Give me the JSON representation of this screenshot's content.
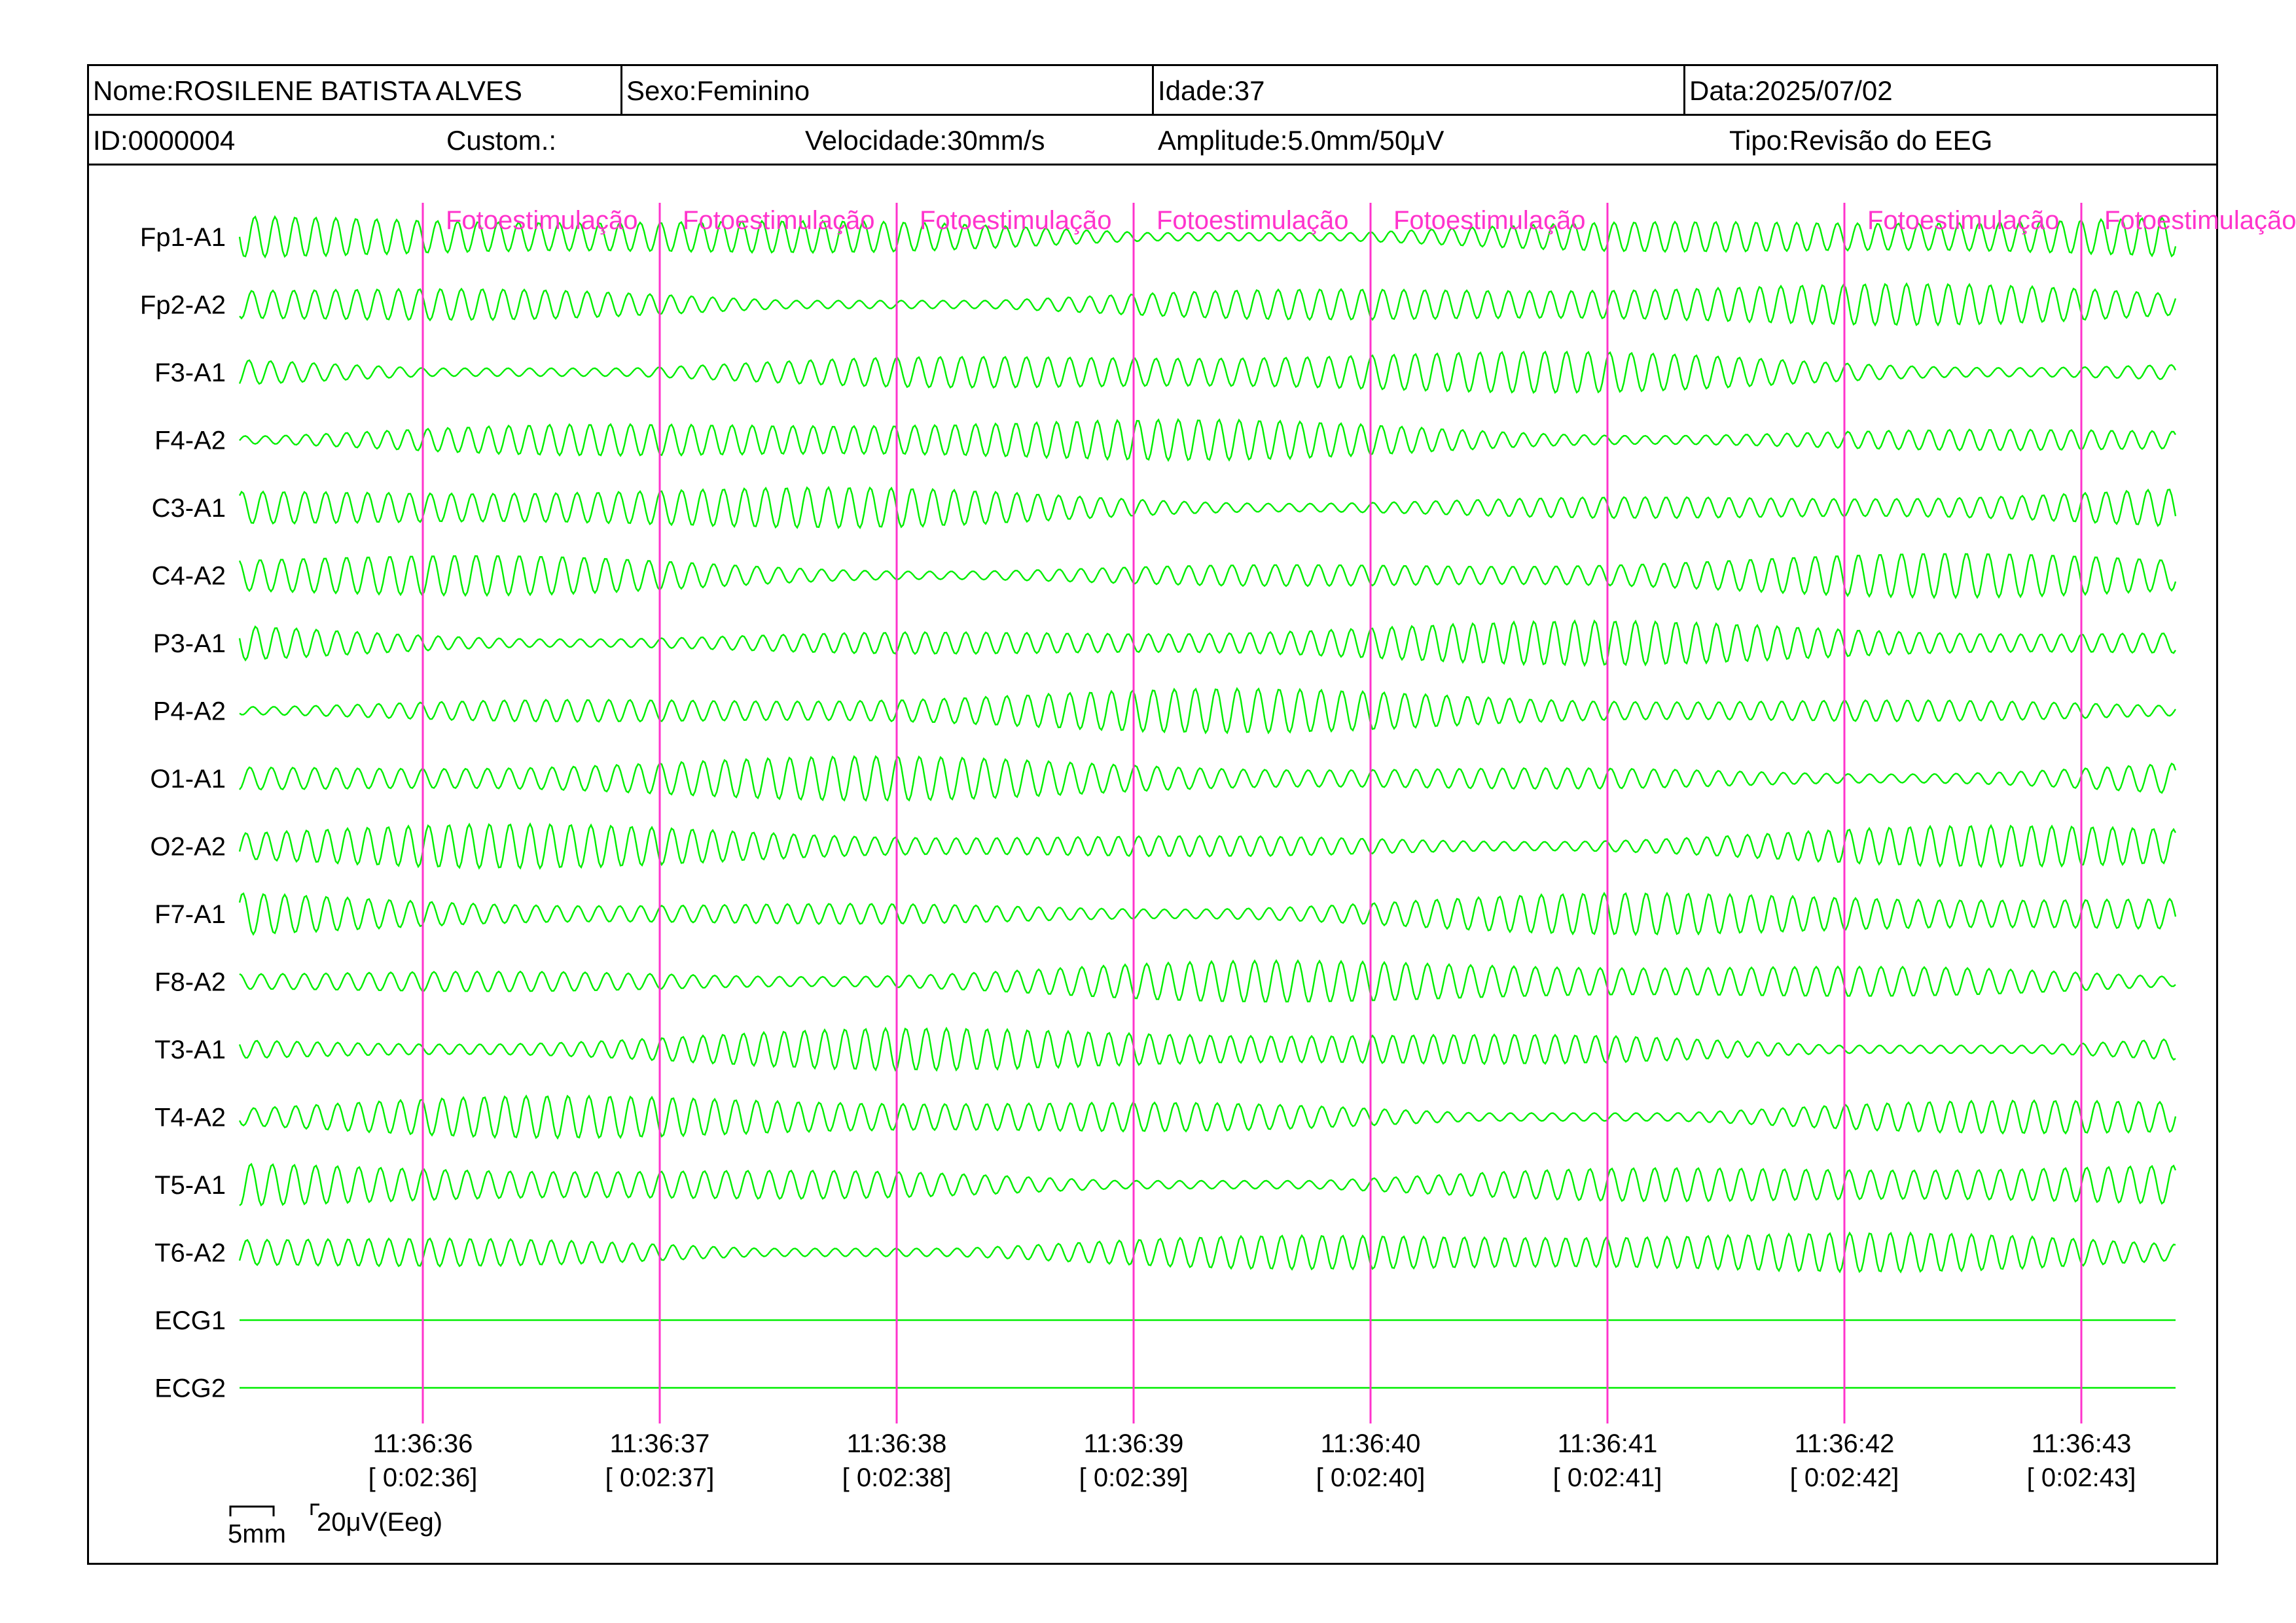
{
  "header": {
    "nome": "Nome:ROSILENE BATISTA ALVES",
    "sexo": "Sexo:Feminino",
    "idade": "Idade:37",
    "data": "Data:2025/07/02",
    "id": "ID:0000004",
    "custom": "Custom.:",
    "velocidade": "Velocidade:30mm/s",
    "amplitude": "Amplitude:5.0mm/50μV",
    "tipo": "Tipo:Revisão do EEG"
  },
  "colors": {
    "trace": "#00ee00",
    "marker": "#ff33cc",
    "border": "#000000"
  },
  "chart_data": {
    "type": "line",
    "channels": [
      "Fp1-A1",
      "Fp2-A2",
      "F3-A1",
      "F4-A2",
      "C3-A1",
      "C4-A2",
      "P3-A1",
      "P4-A2",
      "O1-A1",
      "O2-A2",
      "F7-A1",
      "F8-A2",
      "T3-A1",
      "T4-A2",
      "T5-A1",
      "T6-A2",
      "ECG1",
      "ECG2"
    ],
    "flat_channels": [
      "ECG1",
      "ECG2"
    ],
    "time_ticks": [
      {
        "clock": "11:36:36",
        "elapsed": "[ 0:02:36]"
      },
      {
        "clock": "11:36:37",
        "elapsed": "[ 0:02:37]"
      },
      {
        "clock": "11:36:38",
        "elapsed": "[ 0:02:38]"
      },
      {
        "clock": "11:36:39",
        "elapsed": "[ 0:02:39]"
      },
      {
        "clock": "11:36:40",
        "elapsed": "[ 0:02:40]"
      },
      {
        "clock": "11:36:41",
        "elapsed": "[ 0:02:41]"
      },
      {
        "clock": "11:36:42",
        "elapsed": "[ 0:02:42]"
      },
      {
        "clock": "11:36:43",
        "elapsed": "[ 0:02:43]"
      }
    ],
    "events": [
      {
        "label": "Fotoestimulação"
      },
      {
        "label": "Fotoestimulação"
      },
      {
        "label": "Fotoestimulação"
      },
      {
        "label": "Fotoestimulação"
      },
      {
        "label": "Fotoestimulação"
      },
      {
        "label": "Fotoestimulação"
      },
      {
        "label": "Fotoestimulação"
      }
    ],
    "scale": {
      "time": "5mm",
      "amplitude": "20μV(Eeg)"
    }
  }
}
